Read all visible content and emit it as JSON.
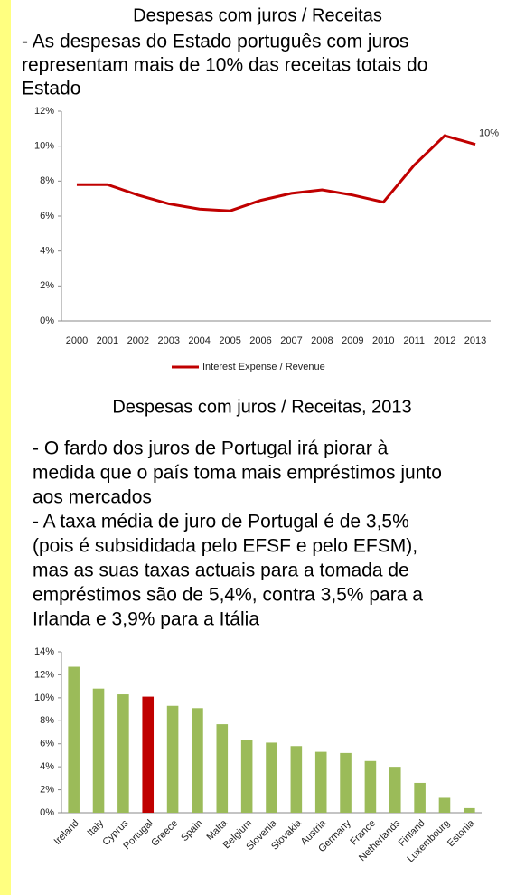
{
  "chart_data": [
    {
      "type": "line",
      "title": "Despesas com juros / Receitas",
      "categories": [
        "2000",
        "2001",
        "2002",
        "2003",
        "2004",
        "2005",
        "2006",
        "2007",
        "2008",
        "2009",
        "2010",
        "2011",
        "2012",
        "2013"
      ],
      "series": [
        {
          "name": "Interest Expense / Revenue",
          "color": "#c00000",
          "values": [
            7.8,
            7.8,
            7.2,
            6.7,
            6.4,
            6.3,
            6.9,
            7.3,
            7.5,
            7.2,
            6.8,
            8.9,
            10.6,
            10.1
          ],
          "value_labels": [
            null,
            null,
            null,
            null,
            null,
            null,
            null,
            null,
            null,
            null,
            null,
            null,
            null,
            "10%"
          ]
        }
      ],
      "ylim": [
        0,
        12
      ],
      "yticks": [
        {
          "value": 0,
          "label": "0%"
        },
        {
          "value": 2,
          "label": "2%"
        },
        {
          "value": 4,
          "label": "4%"
        },
        {
          "value": 6,
          "label": "6%"
        },
        {
          "value": 8,
          "label": "8%"
        },
        {
          "value": 10,
          "label": "10%"
        },
        {
          "value": 12,
          "label": "12%"
        }
      ],
      "grid": false,
      "legend": "bottom"
    },
    {
      "type": "bar",
      "title": "Despesas com juros / Receitas, 2013",
      "categories": [
        "Ireland",
        "Italy",
        "Cyprus",
        "Portugal",
        "Greece",
        "Spain",
        "Malta",
        "Belgium",
        "Slovenia",
        "Slovakia",
        "Austria",
        "Germany",
        "France",
        "Netherlands",
        "Finland",
        "Luxembourg",
        "Estonia"
      ],
      "values": [
        12.7,
        10.8,
        10.3,
        10.1,
        9.3,
        9.1,
        7.7,
        6.3,
        6.1,
        5.8,
        5.3,
        5.2,
        4.5,
        4.0,
        2.6,
        1.3,
        0.4
      ],
      "colors": [
        "#9bbb59",
        "#9bbb59",
        "#9bbb59",
        "#c00000",
        "#9bbb59",
        "#9bbb59",
        "#9bbb59",
        "#9bbb59",
        "#9bbb59",
        "#9bbb59",
        "#9bbb59",
        "#9bbb59",
        "#9bbb59",
        "#9bbb59",
        "#9bbb59",
        "#9bbb59",
        "#9bbb59"
      ],
      "ylim": [
        0,
        14
      ],
      "yticks": [
        {
          "value": 0,
          "label": "0%"
        },
        {
          "value": 2,
          "label": "2%"
        },
        {
          "value": 4,
          "label": "4%"
        },
        {
          "value": 6,
          "label": "6%"
        },
        {
          "value": 8,
          "label": "8%"
        },
        {
          "value": 10,
          "label": "10%"
        },
        {
          "value": 12,
          "label": "12%"
        },
        {
          "value": 14,
          "label": "14%"
        }
      ],
      "grid": false
    }
  ],
  "notes": [
    [
      "- As despesas do Estado português com juros",
      "representam mais de 10% das receitas totais do",
      "Estado"
    ],
    [
      "- O fardo dos juros de Portugal irá piorar à",
      "medida que o país toma mais empréstimos junto",
      "aos mercados",
      "- A taxa média de juro de Portugal é de 3,5%",
      "(pois é subsididada pelo EFSF e pelo EFSM),",
      "mas as suas taxas actuais para a tomada de",
      "empréstimos são de 5,4%, contra 3,5% para a",
      "Irlanda e 3,9% para a Itália"
    ]
  ]
}
